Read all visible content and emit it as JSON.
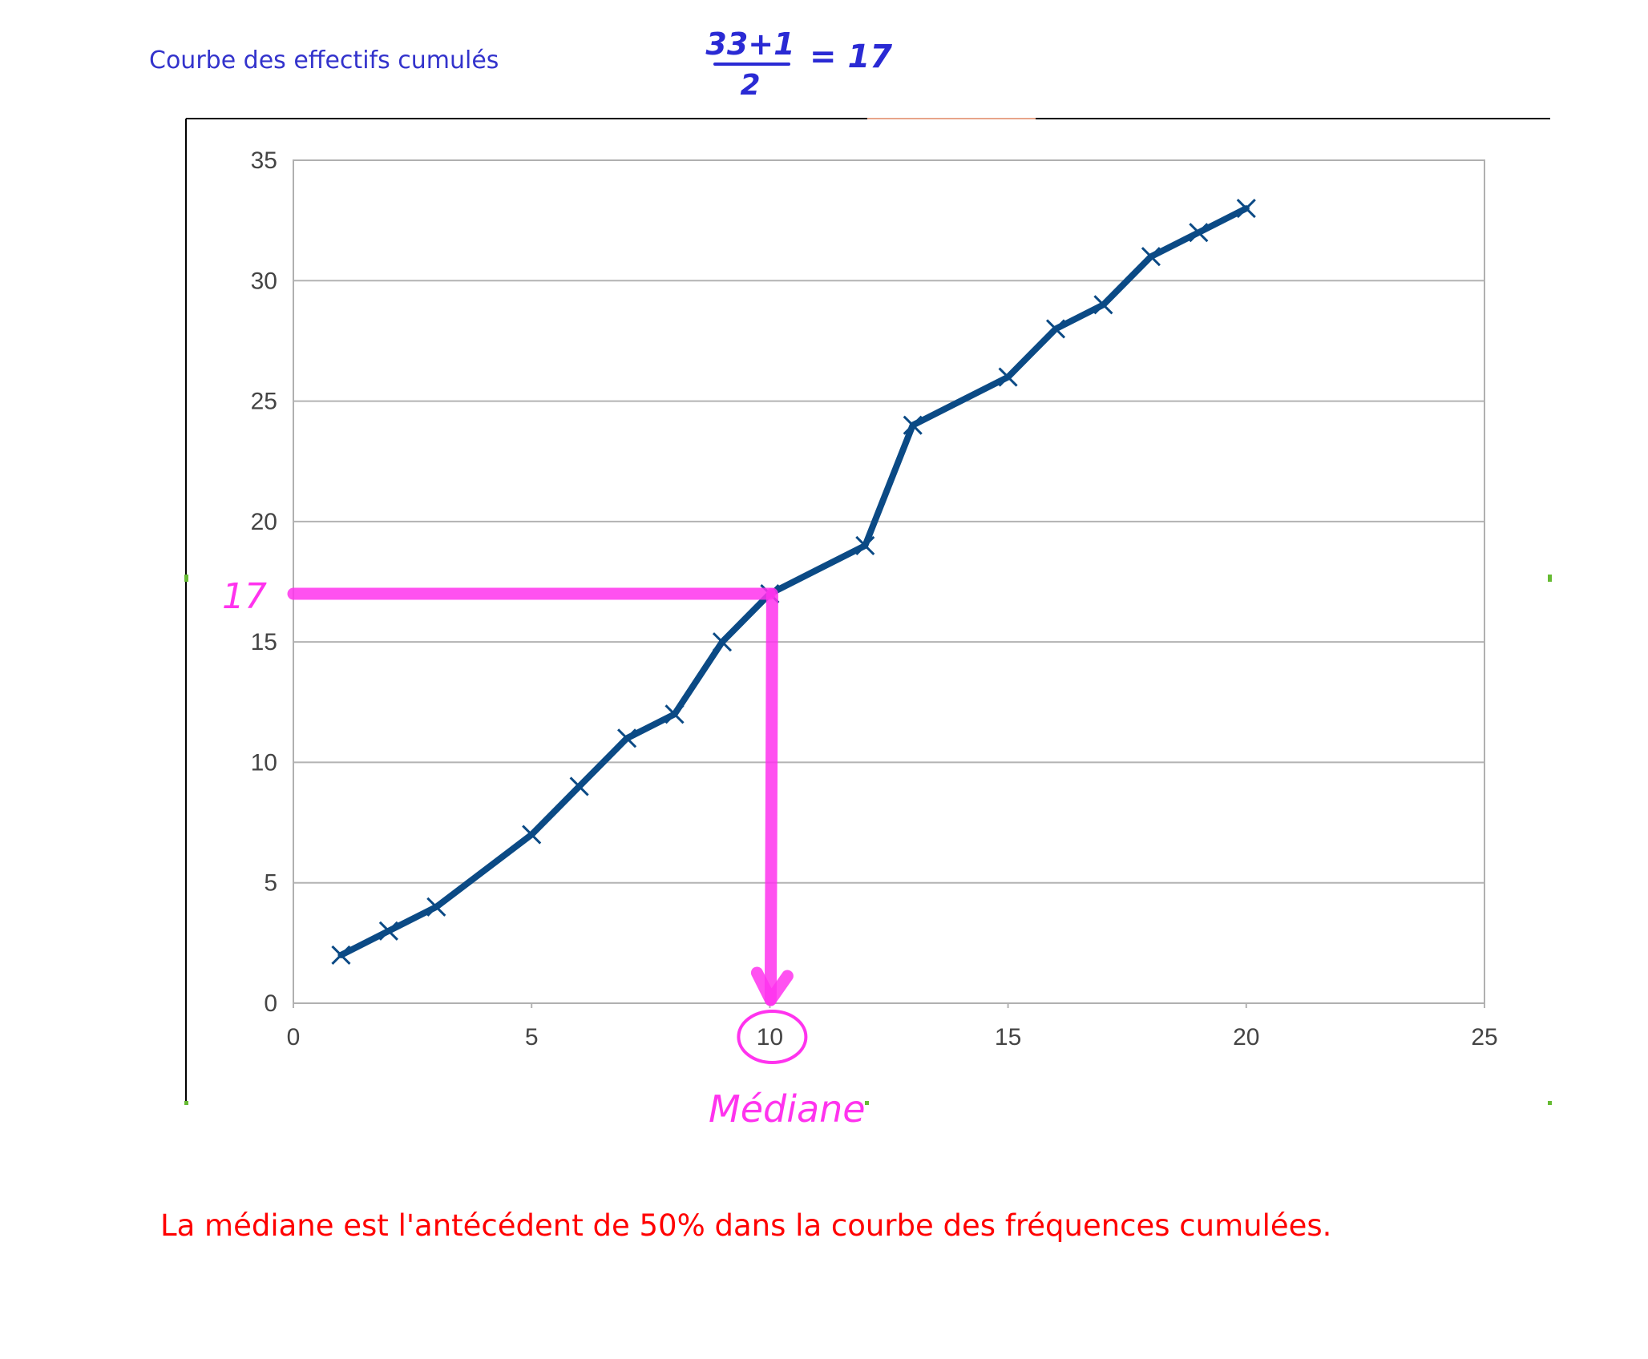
{
  "title": "Courbe des effectifs cumulés",
  "formula": {
    "numerator": "33+1",
    "denominator": "2",
    "result": "= 17"
  },
  "caption": "La médiane est l'antécédent de 50% dans la courbe des fréquences cumulées.",
  "annotations": {
    "y_mark": "17",
    "x_mark_label": "Médiane",
    "circled_tick": "10"
  },
  "colors": {
    "line": "#0b4a85",
    "annotation": "#ff33ee",
    "title": "#3333cc",
    "caption": "#ff0000"
  },
  "chart_data": {
    "type": "line",
    "x": [
      1,
      2,
      3,
      5,
      6,
      7,
      8,
      9,
      10,
      12,
      13,
      15,
      16,
      17,
      18,
      19,
      20
    ],
    "series": [
      {
        "values": [
          2,
          3,
          4,
          7,
          9,
          11,
          12,
          15,
          17,
          19,
          24,
          26,
          28,
          29,
          31,
          32,
          33
        ]
      }
    ],
    "marker": "x",
    "xlim": [
      0,
      25
    ],
    "ylim": [
      0,
      35
    ],
    "xticks": [
      "0",
      "5",
      "10",
      "15",
      "20",
      "25"
    ],
    "yticks": [
      "0",
      "5",
      "10",
      "15",
      "20",
      "25",
      "30",
      "35"
    ],
    "grid": "horizontal",
    "median_guide": {
      "x": 10,
      "y": 17
    }
  }
}
